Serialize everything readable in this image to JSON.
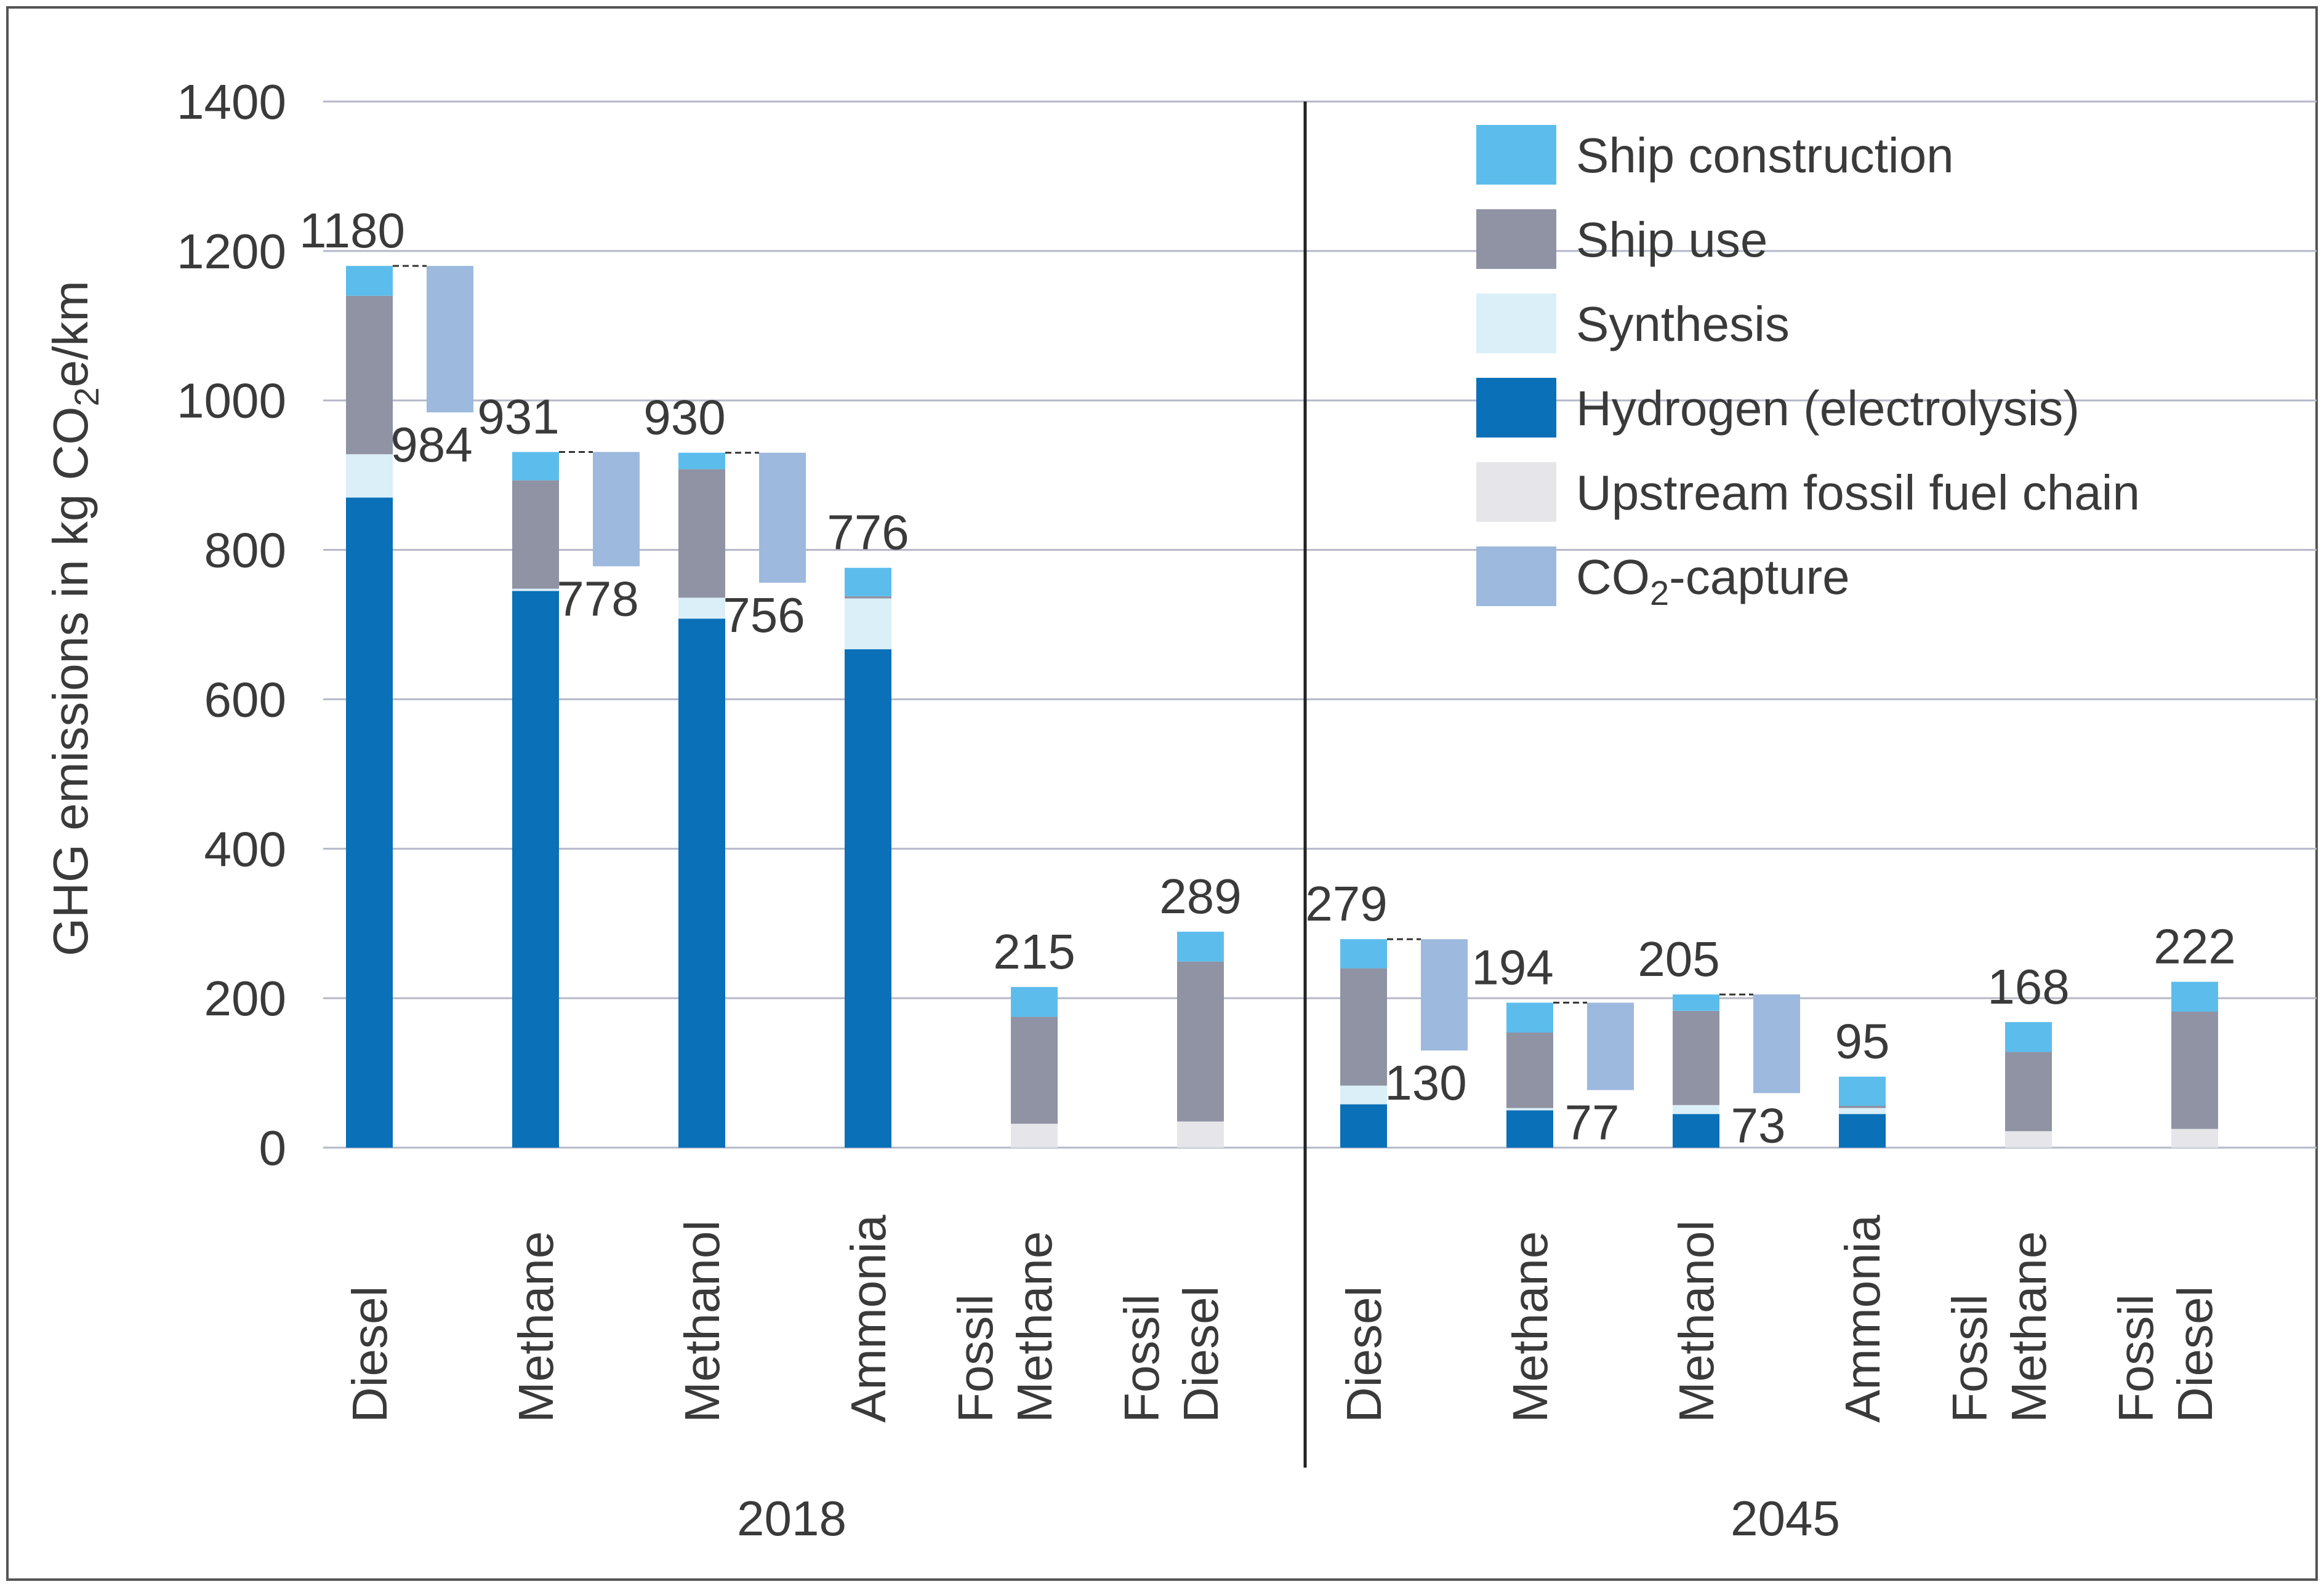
{
  "chart_data": {
    "type": "bar",
    "subtype": "stacked-bar-with-capture-offset",
    "ylabel_main": "GHG emissions in kg CO",
    "ylabel_sub": "2",
    "ylabel_tail": "e/km",
    "ylim": [
      0,
      1400
    ],
    "yticks": [
      "0",
      "200",
      "400",
      "600",
      "800",
      "1000",
      "1200",
      "1400"
    ],
    "grid": true,
    "legend_position": "top-right",
    "components": [
      {
        "key": "upstream",
        "name": "Upstream fossil fuel chain",
        "color": "#e6e6ea"
      },
      {
        "key": "hydrogen",
        "name": "Hydrogen (electrolysis)",
        "color": "#0a70b8"
      },
      {
        "key": "synthesis",
        "name": "Synthesis",
        "color": "#dbeff9"
      },
      {
        "key": "use",
        "name": "Ship use",
        "color": "#8f93a3"
      },
      {
        "key": "construction",
        "name": "Ship construction",
        "color": "#5cbdec"
      }
    ],
    "legend": [
      {
        "name": "Ship construction",
        "color": "#5cbdec"
      },
      {
        "name": "Ship use",
        "color": "#8f93a3"
      },
      {
        "name": "Synthesis",
        "color": "#dbeff9"
      },
      {
        "name": "Hydrogen (electrolysis)",
        "color": "#0a70b8"
      },
      {
        "name": "Upstream fossil fuel chain",
        "color": "#e6e6ea"
      },
      {
        "name": "CO",
        "sub": "2",
        "tail": "-capture",
        "color": "#9db9dd"
      }
    ],
    "groups": [
      {
        "label": "2018",
        "bars": [
          {
            "label": [
              "Diesel"
            ],
            "total": 1180,
            "upstream": 0,
            "hydrogen": 870,
            "synthesis": 58,
            "use": 212,
            "construction": 40,
            "capture_to": 984
          },
          {
            "label": [
              "Methane"
            ],
            "total": 931,
            "upstream": 0,
            "hydrogen": 745,
            "synthesis": 3,
            "use": 145,
            "construction": 38,
            "capture_to": 778
          },
          {
            "label": [
              "Methanol"
            ],
            "total": 930,
            "upstream": 0,
            "hydrogen": 708,
            "synthesis": 28,
            "use": 172,
            "construction": 22,
            "capture_to": 756
          },
          {
            "label": [
              "Ammonia"
            ],
            "total": 776,
            "upstream": 0,
            "hydrogen": 667,
            "synthesis": 68,
            "use": 3,
            "construction": 38,
            "capture_to": null
          },
          {
            "label": [
              "Fossil",
              "Methane"
            ],
            "total": 215,
            "upstream": 32,
            "hydrogen": 0,
            "synthesis": 0,
            "use": 143,
            "construction": 40,
            "capture_to": null
          },
          {
            "label": [
              "Fossil",
              "Diesel"
            ],
            "total": 289,
            "upstream": 35,
            "hydrogen": 0,
            "synthesis": 0,
            "use": 214,
            "construction": 40,
            "capture_to": null
          }
        ]
      },
      {
        "label": "2045",
        "bars": [
          {
            "label": [
              "Diesel"
            ],
            "total": 279,
            "upstream": 0,
            "hydrogen": 58,
            "synthesis": 25,
            "use": 157,
            "construction": 39,
            "capture_to": 130
          },
          {
            "label": [
              "Methane"
            ],
            "total": 194,
            "upstream": 0,
            "hydrogen": 50,
            "synthesis": 3,
            "use": 101,
            "construction": 40,
            "capture_to": 77
          },
          {
            "label": [
              "Methanol"
            ],
            "total": 205,
            "upstream": 0,
            "hydrogen": 45,
            "synthesis": 12,
            "use": 126,
            "construction": 22,
            "capture_to": 73
          },
          {
            "label": [
              "Ammonia"
            ],
            "total": 95,
            "upstream": 0,
            "hydrogen": 45,
            "synthesis": 8,
            "use": 3,
            "construction": 39,
            "capture_to": null
          },
          {
            "label": [
              "Fossil",
              "Methane"
            ],
            "total": 168,
            "upstream": 22,
            "hydrogen": 0,
            "synthesis": 0,
            "use": 106,
            "construction": 40,
            "capture_to": null
          },
          {
            "label": [
              "Fossil",
              "Diesel"
            ],
            "total": 222,
            "upstream": 25,
            "hydrogen": 0,
            "synthesis": 0,
            "use": 157,
            "construction": 40,
            "capture_to": null
          }
        ]
      }
    ]
  }
}
